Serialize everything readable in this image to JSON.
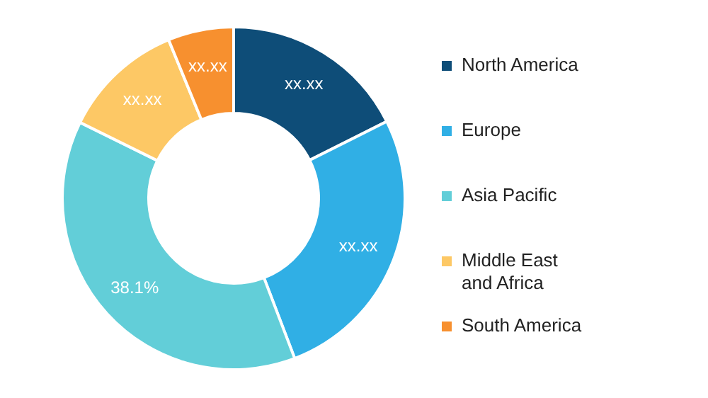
{
  "chart_data": {
    "type": "donut",
    "categories": [
      "North America",
      "Europe",
      "Asia Pacific",
      "Middle East and Africa",
      "South America"
    ],
    "values": [
      17.6,
      26.6,
      38.1,
      11.5,
      6.2
    ],
    "colors": [
      "#0e4d78",
      "#30afe5",
      "#62ced8",
      "#fdc865",
      "#f7902f"
    ],
    "value_labels": [
      "xx.xx",
      "xx.xx",
      "38.1%",
      "xx.xx",
      "xx.xx"
    ],
    "legend": "right"
  }
}
